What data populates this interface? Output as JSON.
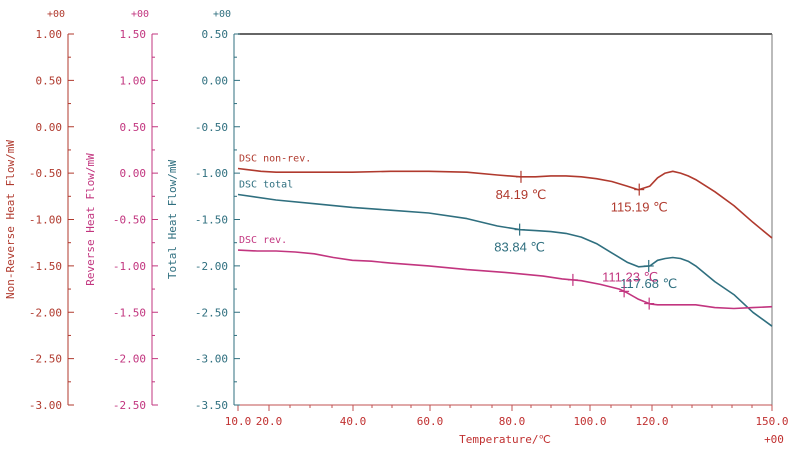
{
  "chart_data": {
    "type": "line",
    "title": "",
    "xlabel": "Temperature/℃",
    "xlim": [
      10,
      150
    ],
    "x_ticks": [
      "10.0",
      "20.0",
      "40.0",
      "60.0",
      "80.0",
      "100.0",
      "120.0",
      "150.0"
    ],
    "x_exponent": "+00",
    "grid": false,
    "axes": [
      {
        "id": "nonrev",
        "label": "Non-Reverse Heat Flow/mW",
        "exponent": "+00",
        "color": "#b03a2e",
        "ylim": [
          -3.0,
          1.0
        ],
        "ticks": [
          "1.00",
          "0.50",
          "0.00",
          "-0.50",
          "-1.00",
          "-1.50",
          "-2.00",
          "-2.50",
          "-3.00"
        ]
      },
      {
        "id": "rev",
        "label": "Reverse Heat Flow/mW",
        "exponent": "+00",
        "color": "#c2357f",
        "ylim": [
          -2.5,
          1.5
        ],
        "ticks": [
          "1.50",
          "1.00",
          "0.50",
          "0.00",
          "-0.50",
          "-1.00",
          "-1.50",
          "-2.00",
          "-2.50"
        ]
      },
      {
        "id": "total",
        "label": "Total Heat Flow/mW",
        "exponent": "+00",
        "color": "#2f6f7f",
        "ylim": [
          -3.5,
          0.5
        ],
        "ticks": [
          "0.50",
          "0.00",
          "-0.50",
          "-1.00",
          "-1.50",
          "-2.00",
          "-2.50",
          "-3.00",
          "-3.50"
        ]
      }
    ],
    "series": [
      {
        "name": "DSC non-rev.",
        "axis": "nonrev",
        "color": "#b03a2e",
        "x": [
          10,
          12,
          16,
          20,
          30,
          40,
          50,
          60,
          70,
          78,
          84,
          88,
          92,
          96,
          100,
          104,
          108,
          112,
          115,
          118,
          120,
          122,
          124,
          126,
          128,
          130,
          135,
          140,
          145,
          150
        ],
        "y": [
          -0.45,
          -0.46,
          -0.48,
          -0.49,
          -0.49,
          -0.49,
          -0.48,
          -0.48,
          -0.49,
          -0.52,
          -0.54,
          -0.54,
          -0.53,
          -0.53,
          -0.54,
          -0.56,
          -0.59,
          -0.64,
          -0.68,
          -0.64,
          -0.55,
          -0.5,
          -0.48,
          -0.5,
          -0.53,
          -0.57,
          -0.7,
          -0.85,
          -1.03,
          -1.2
        ]
      },
      {
        "name": "DSC total",
        "axis": "total",
        "color": "#2f6f7f",
        "x": [
          10,
          20,
          30,
          40,
          50,
          60,
          70,
          78,
          84,
          88,
          92,
          96,
          100,
          104,
          108,
          112,
          115,
          118,
          120,
          122,
          124,
          126,
          128,
          130,
          135,
          140,
          145,
          150
        ],
        "y": [
          -1.23,
          -1.29,
          -1.33,
          -1.37,
          -1.4,
          -1.43,
          -1.49,
          -1.57,
          -1.61,
          -1.62,
          -1.63,
          -1.65,
          -1.69,
          -1.76,
          -1.86,
          -1.96,
          -2.01,
          -2.0,
          -1.94,
          -1.92,
          -1.91,
          -1.92,
          -1.95,
          -2.0,
          -2.17,
          -2.31,
          -2.5,
          -2.65
        ]
      },
      {
        "name": "DSC rev.",
        "axis": "rev",
        "color": "#c2357f",
        "x": [
          10,
          15,
          20,
          25,
          30,
          35,
          40,
          45,
          50,
          60,
          70,
          80,
          90,
          95,
          100,
          105,
          110,
          112,
          115,
          118,
          120,
          125,
          130,
          135,
          140,
          145,
          150
        ],
        "y": [
          -0.83,
          -0.84,
          -0.84,
          -0.85,
          -0.87,
          -0.91,
          -0.94,
          -0.95,
          -0.97,
          -1.0,
          -1.04,
          -1.07,
          -1.11,
          -1.14,
          -1.16,
          -1.2,
          -1.25,
          -1.29,
          -1.36,
          -1.41,
          -1.42,
          -1.42,
          -1.42,
          -1.45,
          -1.46,
          -1.45,
          -1.44
        ]
      }
    ],
    "annotations": [
      {
        "text": "84.19 ℃",
        "series": "DSC non-rev.",
        "x": 84.19,
        "color": "#b03a2e"
      },
      {
        "text": "115.19 ℃",
        "series": "DSC non-rev.",
        "x": 115.19,
        "color": "#b03a2e"
      },
      {
        "text": "83.84 ℃",
        "series": "DSC total",
        "x": 83.84,
        "color": "#2f6f7f"
      },
      {
        "text": "117.68 ℃",
        "series": "DSC total",
        "x": 117.68,
        "color": "#2f6f7f"
      },
      {
        "text": "111.23 ℃",
        "series": "DSC rev.",
        "x": 111.23,
        "color": "#c2357f"
      }
    ]
  }
}
